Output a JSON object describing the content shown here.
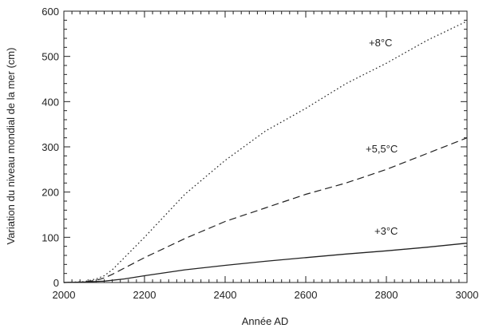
{
  "chart_data": {
    "type": "line",
    "xlabel": "Année AD",
    "ylabel": "Variation du niveau mondial de la mer (cm)",
    "xlim": [
      2000,
      3000
    ],
    "ylim": [
      0,
      600
    ],
    "x_ticks": [
      2000,
      2200,
      2400,
      2600,
      2800,
      3000
    ],
    "y_ticks": [
      0,
      100,
      200,
      300,
      400,
      500,
      600
    ],
    "grid": false,
    "series": [
      {
        "name": "+8°C",
        "style": "dotted",
        "color": "#222222",
        "x": [
          2000,
          2050,
          2080,
          2100,
          2120,
          2150,
          2200,
          2300,
          2400,
          2500,
          2600,
          2700,
          2800,
          2900,
          3000
        ],
        "y": [
          0,
          2,
          8,
          15,
          28,
          55,
          100,
          195,
          270,
          335,
          385,
          440,
          485,
          535,
          578
        ]
      },
      {
        "name": "+5,5°C",
        "style": "dashed",
        "color": "#222222",
        "x": [
          2000,
          2050,
          2080,
          2100,
          2120,
          2150,
          2200,
          2300,
          2400,
          2500,
          2600,
          2700,
          2800,
          2900,
          3000
        ],
        "y": [
          0,
          1,
          5,
          10,
          18,
          32,
          55,
          97,
          135,
          165,
          195,
          220,
          250,
          285,
          320
        ]
      },
      {
        "name": "+3°C",
        "style": "solid",
        "color": "#222222",
        "x": [
          2000,
          2050,
          2100,
          2150,
          2200,
          2300,
          2400,
          2500,
          2600,
          2700,
          2800,
          2900,
          3000
        ],
        "y": [
          0,
          1,
          3,
          8,
          15,
          28,
          38,
          47,
          55,
          63,
          70,
          78,
          87
        ]
      }
    ]
  }
}
